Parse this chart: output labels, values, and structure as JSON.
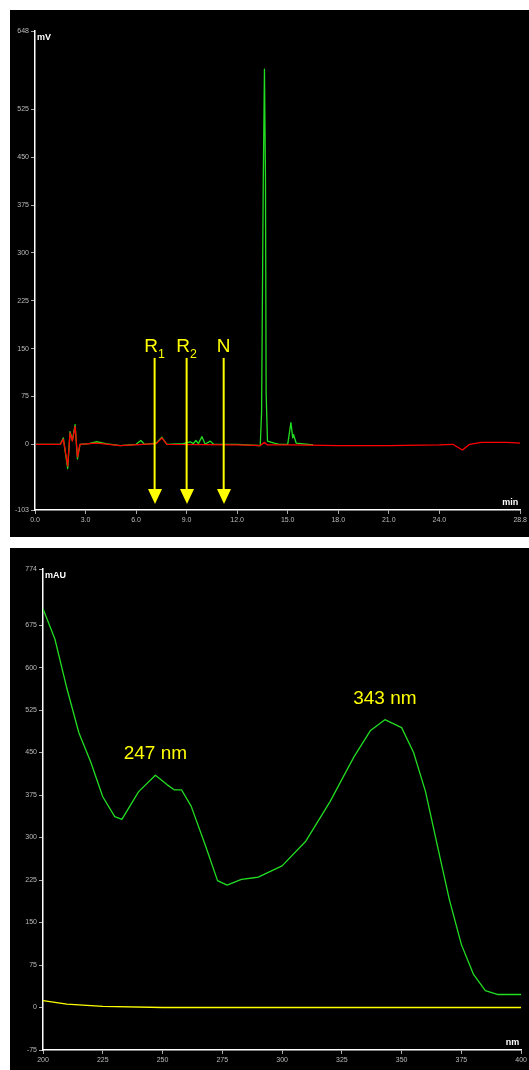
{
  "chart_data": [
    {
      "type": "line",
      "xlabel": "min",
      "ylabel": "mV",
      "xlim": [
        0,
        28.8
      ],
      "ylim": [
        -103,
        648
      ],
      "xticks": [
        {
          "value": 0,
          "label": "0.0"
        },
        {
          "value": 3,
          "label": "3.0"
        },
        {
          "value": 6,
          "label": "6.0"
        },
        {
          "value": 9,
          "label": "9.0"
        },
        {
          "value": 12,
          "label": "12.0"
        },
        {
          "value": 15,
          "label": "15.0"
        },
        {
          "value": 18,
          "label": "18.0"
        },
        {
          "value": 21,
          "label": "21.0"
        },
        {
          "value": 24,
          "label": "24.0"
        },
        {
          "value": 28.8,
          "label": "28.8"
        }
      ],
      "yticks": [
        -103,
        0,
        75,
        150,
        225,
        300,
        375,
        450,
        525,
        648
      ],
      "grid": false,
      "legend": false,
      "marker": "none",
      "line_style": "solid",
      "series": [
        {
          "color": "#22dd22",
          "x": [
            0.06,
            1.5,
            1.68,
            1.94,
            2.08,
            2.22,
            2.38,
            2.52,
            2.67,
            3.2,
            3.66,
            4.2,
            5.05,
            6.0,
            6.28,
            6.5,
            7.2,
            7.53,
            7.83,
            8.8,
            9.21,
            9.4,
            9.55,
            9.7,
            9.91,
            10.1,
            10.4,
            10.6,
            12.0,
            13.37,
            13.45,
            13.55,
            13.62,
            13.68,
            13.72,
            13.8,
            14.2,
            14.5,
            15.0,
            15.19,
            15.3,
            15.35,
            15.5,
            16.5
          ],
          "values": [
            0,
            0,
            10,
            -38,
            20,
            6,
            31,
            -23,
            0,
            1,
            4,
            1,
            -2,
            0,
            6,
            0,
            2,
            11,
            0,
            1,
            4,
            1,
            6,
            1,
            12,
            0,
            5,
            0,
            0,
            -2,
            50,
            414,
            588,
            420,
            80,
            5,
            2,
            0,
            0,
            34,
            10,
            15,
            2,
            -1
          ]
        },
        {
          "color": "#ff0000",
          "x": [
            0.06,
            1.5,
            1.68,
            1.94,
            2.08,
            2.22,
            2.38,
            2.52,
            2.67,
            3.66,
            5.05,
            7.2,
            7.53,
            7.83,
            12.0,
            13.37,
            13.62,
            13.8,
            15.19,
            18.0,
            21.0,
            24.0,
            24.8,
            25.37,
            25.8,
            26.5,
            28.0,
            28.8
          ],
          "values": [
            0,
            0,
            8,
            -34,
            18,
            5,
            28,
            -20,
            0,
            2,
            -2,
            1,
            10,
            0,
            -1,
            -2,
            3,
            -1,
            -1,
            -2,
            -2,
            -1,
            0,
            -9,
            0,
            3,
            3,
            2
          ]
        }
      ],
      "ref_lines": [
        {
          "axis": "x",
          "value": 7.1,
          "label": "R$_{1}$",
          "color": "#ffff00"
        },
        {
          "axis": "x",
          "value": 9.0,
          "label": "R$_{2}$",
          "color": "#ffff00"
        },
        {
          "axis": "x",
          "value": 11.2,
          "label": "N",
          "color": "#ffff00"
        }
      ]
    },
    {
      "type": "line",
      "xlabel": "nm",
      "ylabel": "mAU",
      "xlim": [
        200,
        400
      ],
      "ylim": [
        -75,
        774
      ],
      "xticks": [
        200,
        225,
        250,
        275,
        300,
        325,
        350,
        375,
        400
      ],
      "yticks": [
        -75,
        0,
        75,
        150,
        225,
        300,
        375,
        450,
        525,
        600,
        675,
        774
      ],
      "grid": false,
      "legend": false,
      "marker": "none",
      "line_style": "solid",
      "series": [
        {
          "color": "#22dd22",
          "x": [
            200,
            205,
            210,
            215,
            220,
            225,
            230,
            233,
            240,
            247,
            252,
            255,
            258,
            262,
            268,
            273,
            277,
            283,
            290,
            300,
            310,
            320,
            330,
            337,
            343,
            350,
            355,
            360,
            365,
            370,
            375,
            380,
            385,
            390,
            395,
            400
          ],
          "values": [
            704,
            650,
            563,
            485,
            433,
            372,
            337,
            332,
            381,
            410,
            393,
            384,
            384,
            355,
            285,
            224,
            216,
            226,
            230,
            250,
            294,
            363,
            442,
            489,
            508,
            494,
            450,
            381,
            285,
            190,
            111,
            59,
            30,
            23,
            23,
            23
          ]
        },
        {
          "color": "#ffff00",
          "x": [
            200,
            210,
            225,
            250,
            300,
            350,
            400
          ],
          "values": [
            12,
            6,
            2,
            0,
            0,
            0,
            0
          ]
        }
      ],
      "annotations": [
        {
          "text": "247 nm",
          "x": 247,
          "y": 410
        },
        {
          "text": "343 nm",
          "x": 343,
          "y": 508
        }
      ]
    }
  ]
}
